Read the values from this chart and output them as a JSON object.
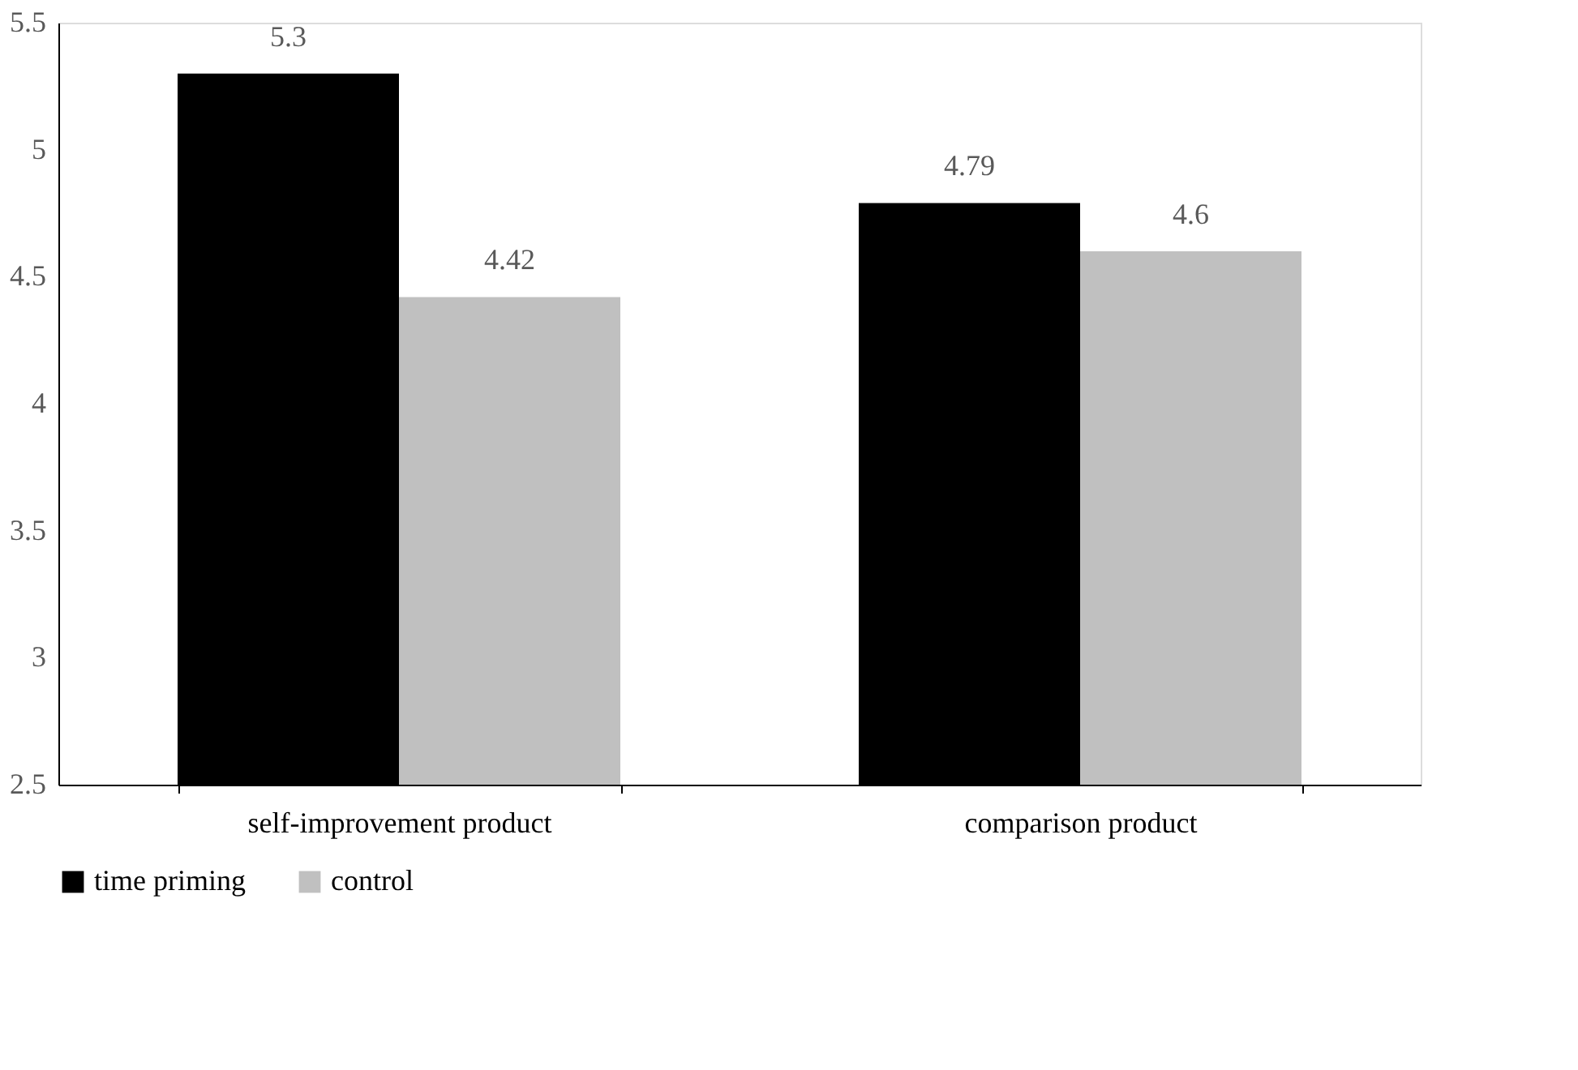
{
  "chart_data": {
    "type": "bar",
    "categories": [
      "self-improvement product",
      "comparison product"
    ],
    "series": [
      {
        "name": "time priming",
        "color": "#000000",
        "values": [
          5.3,
          4.79
        ]
      },
      {
        "name": "control",
        "color": "#c0c0c0",
        "values": [
          4.42,
          4.6
        ]
      }
    ],
    "ylim": [
      2.5,
      5.5
    ],
    "yticks": [
      2.5,
      3,
      3.5,
      4,
      4.5,
      5,
      5.5
    ],
    "data_labels": true,
    "legend": "bottom",
    "grid": false
  }
}
